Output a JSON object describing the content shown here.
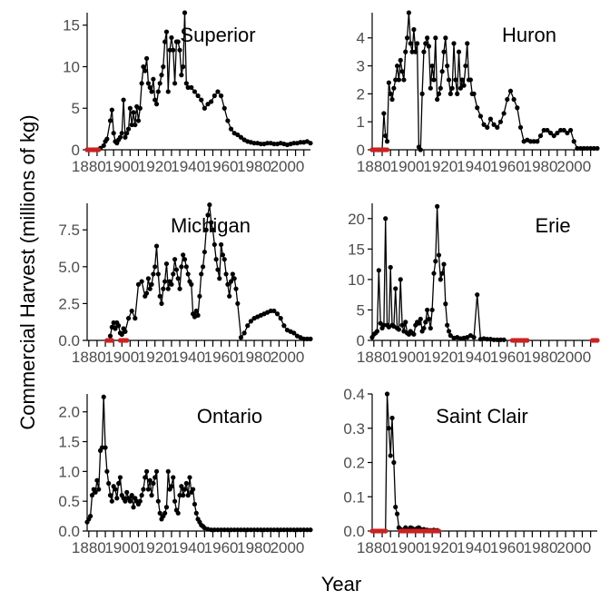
{
  "chart_data": {
    "type": "line",
    "ylabel": "Commercial Harvest (millions of kg)",
    "xlabel": "Year",
    "grid": false,
    "colors": {
      "observed": "#000000",
      "zero": "#cc2222"
    },
    "panels": [
      {
        "title": "Superior",
        "xlim": [
          1879,
          2014
        ],
        "ylim": [
          0,
          16.5
        ],
        "xticks": [
          1880,
          1900,
          1920,
          1940,
          1960,
          1980,
          2000
        ],
        "yticks": [
          0,
          5,
          10,
          15
        ],
        "ytick_labels": [
          "0",
          "5",
          "10",
          "15"
        ],
        "x": [
          1879,
          1883,
          1885,
          1887,
          1889,
          1890,
          1891,
          1893,
          1894,
          1895,
          1896,
          1897,
          1898,
          1899,
          1900,
          1901,
          1902,
          1903,
          1904,
          1905,
          1906,
          1907,
          1908,
          1909,
          1910,
          1911,
          1912,
          1913,
          1914,
          1915,
          1916,
          1917,
          1918,
          1919,
          1920,
          1921,
          1922,
          1923,
          1924,
          1925,
          1926,
          1927,
          1928,
          1929,
          1930,
          1931,
          1932,
          1933,
          1934,
          1935,
          1936,
          1937,
          1938,
          1939,
          1940,
          1942,
          1944,
          1946,
          1948,
          1950,
          1952,
          1954,
          1956,
          1958,
          1960,
          1962,
          1964,
          1966,
          1968,
          1970,
          1972,
          1974,
          1976,
          1978,
          1980,
          1982,
          1984,
          1986,
          1988,
          1990,
          1992,
          1994,
          1996,
          1998,
          2000,
          2002,
          2004,
          2006,
          2008,
          2010,
          2012,
          2014
        ],
        "y": [
          0,
          0,
          0,
          0.2,
          0.5,
          1.0,
          1.3,
          3.5,
          4.8,
          2.0,
          1.0,
          0.8,
          1.2,
          1.5,
          2.0,
          6.0,
          1.5,
          2.0,
          2.5,
          5.0,
          3.0,
          4.5,
          3.0,
          5.2,
          3.5,
          5.0,
          8.0,
          10.0,
          9.5,
          11.0,
          8.0,
          7.5,
          7.0,
          8.5,
          6.0,
          5.5,
          7.0,
          8.0,
          9.0,
          10.0,
          13.0,
          14.2,
          7.0,
          12.0,
          13.5,
          12.0,
          8.0,
          13.0,
          13.0,
          12.0,
          9.0,
          10.0,
          16.5,
          8.0,
          7.5,
          7.5,
          7.0,
          6.5,
          6.0,
          5.0,
          5.5,
          5.8,
          6.5,
          7.0,
          6.5,
          5.0,
          3.5,
          2.5,
          2.0,
          1.8,
          1.5,
          1.2,
          1.0,
          0.9,
          0.8,
          0.8,
          0.7,
          0.7,
          0.8,
          0.8,
          0.7,
          0.7,
          0.8,
          0.7,
          0.6,
          0.7,
          0.8,
          0.8,
          0.9,
          0.9,
          1.0,
          0.8
        ],
        "zero_x": [
          1879,
          1880,
          1881,
          1882,
          1883,
          1884,
          1885,
          1886
        ]
      },
      {
        "title": "Huron",
        "xlim": [
          1879,
          2014
        ],
        "ylim": [
          0,
          4.9
        ],
        "xticks": [
          1880,
          1900,
          1920,
          1940,
          1960,
          1980,
          2000
        ],
        "yticks": [
          0,
          1,
          2,
          3,
          4
        ],
        "ytick_labels": [
          "0",
          "1",
          "2",
          "3",
          "4"
        ],
        "x": [
          1879,
          1883,
          1885,
          1886,
          1887,
          1888,
          1889,
          1890,
          1891,
          1892,
          1893,
          1894,
          1895,
          1896,
          1897,
          1898,
          1899,
          1900,
          1901,
          1902,
          1903,
          1904,
          1905,
          1906,
          1907,
          1908,
          1909,
          1910,
          1911,
          1912,
          1913,
          1914,
          1915,
          1916,
          1917,
          1918,
          1919,
          1920,
          1921,
          1922,
          1923,
          1924,
          1925,
          1926,
          1927,
          1928,
          1929,
          1930,
          1931,
          1932,
          1933,
          1934,
          1935,
          1936,
          1937,
          1938,
          1939,
          1940,
          1942,
          1944,
          1946,
          1948,
          1950,
          1952,
          1954,
          1956,
          1958,
          1960,
          1962,
          1964,
          1966,
          1968,
          1970,
          1972,
          1974,
          1976,
          1978,
          1980,
          1982,
          1984,
          1986,
          1988,
          1990,
          1992,
          1994,
          1996,
          1998,
          2000,
          2002,
          2004,
          2006,
          2008,
          2010,
          2012,
          2014
        ],
        "y": [
          0,
          0,
          0,
          1.3,
          0.5,
          0.3,
          2.4,
          2.0,
          1.8,
          2.2,
          2.5,
          3.0,
          2.5,
          3.2,
          2.8,
          2.5,
          3.5,
          4.0,
          4.9,
          3.8,
          3.5,
          4.3,
          3.5,
          3.8,
          0.1,
          0.0,
          2.0,
          3.5,
          3.8,
          4.0,
          3.7,
          2.2,
          3.0,
          2.5,
          4.0,
          1.8,
          2.0,
          2.2,
          2.8,
          3.5,
          4.0,
          3.0,
          2.5,
          2.0,
          2.2,
          3.8,
          2.5,
          2.0,
          3.5,
          2.2,
          2.5,
          2.3,
          3.0,
          3.8,
          2.5,
          2.5,
          2.0,
          2.0,
          1.5,
          1.2,
          0.9,
          0.8,
          1.1,
          0.9,
          0.8,
          1.0,
          1.3,
          1.8,
          2.1,
          1.8,
          1.5,
          0.8,
          0.3,
          0.35,
          0.3,
          0.3,
          0.3,
          0.5,
          0.7,
          0.7,
          0.6,
          0.5,
          0.6,
          0.7,
          0.7,
          0.6,
          0.7,
          0.3,
          0.05,
          0.05,
          0.05,
          0.05,
          0.05,
          0.05,
          0.05
        ],
        "zero_x": [
          1879,
          1880,
          1881,
          1882,
          1883,
          1884,
          1885,
          1886,
          1887,
          1888
        ]
      },
      {
        "title": "Michigan",
        "xlim": [
          1879,
          2014
        ],
        "ylim": [
          0,
          9.3
        ],
        "xticks": [
          1880,
          1900,
          1920,
          1940,
          1960,
          1980,
          2000
        ],
        "yticks": [
          0,
          2.5,
          5,
          7.5
        ],
        "ytick_labels": [
          "0.0",
          "2.5",
          "5.0",
          "7.5"
        ],
        "x": [
          1893,
          1894,
          1895,
          1896,
          1897,
          1898,
          1899,
          1900,
          1901,
          1902,
          1904,
          1906,
          1908,
          1910,
          1912,
          1914,
          1915,
          1916,
          1917,
          1918,
          1919,
          1920,
          1921,
          1922,
          1923,
          1924,
          1925,
          1926,
          1927,
          1928,
          1929,
          1930,
          1931,
          1932,
          1933,
          1934,
          1935,
          1936,
          1937,
          1938,
          1939,
          1940,
          1941,
          1942,
          1943,
          1944,
          1945,
          1946,
          1947,
          1948,
          1949,
          1950,
          1951,
          1952,
          1953,
          1954,
          1955,
          1956,
          1957,
          1958,
          1959,
          1960,
          1961,
          1962,
          1963,
          1964,
          1965,
          1966,
          1967,
          1968,
          1969,
          1970,
          1972,
          1974,
          1976,
          1978,
          1980,
          1982,
          1984,
          1986,
          1988,
          1990,
          1992,
          1994,
          1996,
          1998,
          2000,
          2002,
          2004,
          2006,
          2008,
          2010,
          2012,
          2014
        ],
        "y": [
          0.3,
          0.9,
          1.2,
          0.8,
          1.2,
          1.0,
          0.5,
          0.4,
          0.8,
          0.6,
          1.5,
          2.0,
          1.5,
          3.8,
          4.0,
          3.0,
          3.2,
          4.2,
          3.5,
          3.8,
          4.5,
          5.0,
          6.4,
          4.5,
          3.0,
          2.5,
          3.5,
          4.0,
          5.2,
          3.5,
          4.0,
          3.8,
          4.5,
          5.5,
          4.8,
          4.2,
          3.5,
          5.0,
          5.8,
          5.5,
          5.0,
          4.5,
          4.0,
          3.8,
          1.8,
          1.6,
          2.0,
          1.7,
          3.0,
          4.5,
          5.0,
          6.0,
          7.5,
          8.5,
          9.2,
          8.0,
          7.5,
          6.5,
          5.5,
          4.8,
          4.2,
          6.5,
          5.8,
          5.5,
          4.5,
          3.8,
          3.0,
          4.0,
          4.5,
          4.2,
          3.5,
          2.5,
          0.2,
          0.5,
          1.0,
          1.3,
          1.5,
          1.6,
          1.7,
          1.8,
          1.9,
          2.0,
          2.0,
          1.8,
          1.5,
          1.0,
          0.7,
          0.6,
          0.5,
          0.3,
          0.2,
          0.1,
          0.1,
          0.1
        ],
        "zero_x": [
          1891,
          1892,
          1893,
          1894,
          1899,
          1900,
          1901,
          1902,
          1903
        ]
      },
      {
        "title": "Erie",
        "xlim": [
          1879,
          2014
        ],
        "ylim": [
          0,
          22.5
        ],
        "xticks": [
          1880,
          1900,
          1920,
          1940,
          1960,
          1980,
          2000
        ],
        "yticks": [
          0,
          5,
          10,
          15,
          20
        ],
        "ytick_labels": [
          "0",
          "5",
          "10",
          "15",
          "20"
        ],
        "x": [
          1879,
          1880,
          1881,
          1882,
          1883,
          1884,
          1885,
          1886,
          1887,
          1888,
          1889,
          1890,
          1891,
          1892,
          1893,
          1894,
          1895,
          1896,
          1897,
          1898,
          1899,
          1900,
          1901,
          1902,
          1903,
          1904,
          1905,
          1906,
          1907,
          1908,
          1909,
          1910,
          1911,
          1912,
          1913,
          1914,
          1915,
          1916,
          1917,
          1918,
          1919,
          1920,
          1921,
          1922,
          1923,
          1924,
          1925,
          1926,
          1928,
          1930,
          1932,
          1934,
          1936,
          1938,
          1940,
          1942,
          1944,
          1946,
          1948,
          1950,
          1952,
          1954,
          1956,
          1958
        ],
        "y": [
          0.5,
          1.0,
          1.2,
          1.5,
          11.5,
          2.8,
          2.0,
          2.5,
          20.0,
          2.5,
          2.2,
          12.0,
          2.5,
          2.3,
          8.5,
          2.0,
          1.8,
          10.0,
          2.5,
          1.5,
          3.0,
          1.2,
          1.0,
          1.5,
          1.2,
          1.0,
          2.5,
          3.0,
          2.8,
          3.5,
          1.5,
          2.0,
          3.0,
          5.0,
          3.5,
          2.0,
          5.0,
          11.0,
          13.0,
          22.0,
          14.0,
          10.0,
          11.0,
          12.5,
          6.0,
          2.5,
          1.5,
          0.8,
          0.4,
          0.5,
          0.3,
          0.4,
          0.5,
          0.8,
          0.5,
          7.5,
          0.2,
          0.3,
          0.2,
          0.2,
          0.1,
          0.1,
          0.1,
          0.1
        ],
        "zero_x": [
          1963,
          1964,
          1965,
          1966,
          1967,
          1968,
          1969,
          1970,
          1971,
          1972,
          2011,
          2012,
          2013,
          2014
        ]
      },
      {
        "title": "Ontario",
        "xlim": [
          1879,
          2014
        ],
        "ylim": [
          0,
          2.3
        ],
        "xticks": [
          1880,
          1900,
          1920,
          1940,
          1960,
          1980,
          2000
        ],
        "yticks": [
          0,
          0.5,
          1.0,
          1.5,
          2.0
        ],
        "ytick_labels": [
          "0.0",
          "0.5",
          "1.0",
          "1.5",
          "2.0"
        ],
        "x": [
          1879,
          1880,
          1881,
          1882,
          1883,
          1884,
          1885,
          1886,
          1887,
          1888,
          1889,
          1890,
          1891,
          1892,
          1893,
          1894,
          1895,
          1896,
          1897,
          1898,
          1899,
          1900,
          1901,
          1902,
          1903,
          1904,
          1905,
          1906,
          1907,
          1908,
          1909,
          1910,
          1911,
          1912,
          1913,
          1914,
          1915,
          1916,
          1917,
          1918,
          1919,
          1920,
          1921,
          1922,
          1923,
          1924,
          1925,
          1926,
          1927,
          1928,
          1929,
          1930,
          1931,
          1932,
          1933,
          1934,
          1935,
          1936,
          1937,
          1938,
          1939,
          1940,
          1941,
          1942,
          1943,
          1944,
          1945,
          1946,
          1947,
          1948,
          1949,
          1950,
          1952,
          1954,
          1956,
          1958,
          1960,
          1962,
          1964,
          1966,
          1968,
          1970,
          1972,
          1974,
          1976,
          1978,
          1980,
          1982,
          1984,
          1986,
          1988,
          1990,
          1992,
          1994,
          1996,
          1998,
          2000,
          2002,
          2004,
          2006,
          2008,
          2010,
          2012,
          2014
        ],
        "y": [
          0.15,
          0.2,
          0.25,
          0.6,
          0.7,
          0.65,
          0.85,
          0.7,
          1.35,
          1.4,
          2.25,
          1.4,
          1.0,
          0.8,
          0.6,
          0.5,
          0.75,
          0.7,
          0.55,
          0.8,
          0.9,
          0.6,
          0.55,
          0.5,
          0.65,
          0.55,
          0.5,
          0.6,
          0.4,
          0.55,
          0.5,
          0.45,
          0.5,
          0.6,
          0.7,
          0.9,
          1.0,
          0.7,
          0.85,
          0.6,
          0.8,
          0.9,
          1.0,
          0.5,
          0.3,
          0.2,
          0.25,
          0.3,
          0.4,
          1.0,
          0.7,
          0.75,
          0.9,
          0.5,
          0.35,
          0.3,
          0.6,
          0.75,
          0.6,
          0.7,
          0.8,
          0.6,
          0.9,
          0.65,
          0.7,
          0.45,
          0.3,
          0.2,
          0.15,
          0.1,
          0.08,
          0.05,
          0.03,
          0.02,
          0.02,
          0.02,
          0.02,
          0.02,
          0.02,
          0.02,
          0.02,
          0.02,
          0.02,
          0.02,
          0.02,
          0.02,
          0.02,
          0.02,
          0.02,
          0.02,
          0.02,
          0.02,
          0.02,
          0.02,
          0.02,
          0.02,
          0.02,
          0.02,
          0.02,
          0.02,
          0.02,
          0.02,
          0.02,
          0.02
        ],
        "zero_x": []
      },
      {
        "title": "Saint Clair",
        "xlim": [
          1879,
          2014
        ],
        "ylim": [
          0,
          0.4
        ],
        "xticks": [
          1880,
          1900,
          1920,
          1940,
          1960,
          1980,
          2000
        ],
        "yticks": [
          0,
          0.1,
          0.2,
          0.3,
          0.4
        ],
        "ytick_labels": [
          "0.0",
          "0.1",
          "0.2",
          "0.3",
          "0.4"
        ],
        "x": [
          1887,
          1888,
          1889,
          1890,
          1891,
          1892,
          1893,
          1894,
          1895,
          1896,
          1897,
          1898,
          1899,
          1900,
          1901,
          1902,
          1903,
          1904,
          1905,
          1906,
          1907,
          1908,
          1909,
          1910,
          1912,
          1914,
          1916,
          1918
        ],
        "y": [
          0.0,
          0.4,
          0.3,
          0.22,
          0.33,
          0.2,
          0.07,
          0.05,
          0.01,
          0.005,
          0.003,
          0.002,
          0.01,
          0.005,
          0.003,
          0.01,
          0.008,
          0.005,
          0.003,
          0.008,
          0.01,
          0.005,
          0.003,
          0.005,
          0.003,
          0.002,
          0.003,
          0.002
        ],
        "zero_x": [
          1879,
          1880,
          1881,
          1882,
          1883,
          1884,
          1885,
          1886,
          1887,
          1896,
          1897,
          1898,
          1899,
          1900,
          1901,
          1902,
          1903,
          1904,
          1905,
          1906,
          1907,
          1908,
          1909,
          1910,
          1911,
          1912,
          1913,
          1914,
          1915,
          1916,
          1917,
          1918,
          1919
        ]
      }
    ]
  }
}
